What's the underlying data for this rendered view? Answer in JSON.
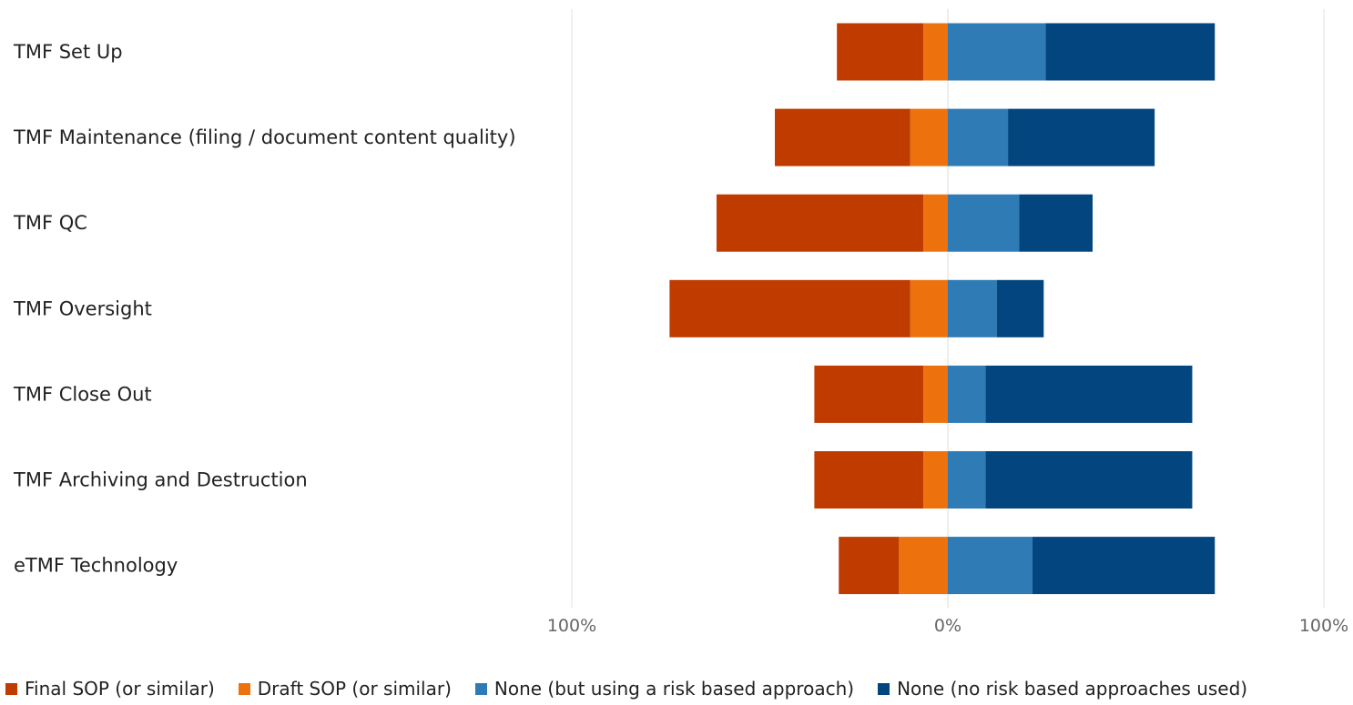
{
  "chart_data": {
    "type": "bar",
    "orientation": "horizontal",
    "stacking": "diverging",
    "categories": [
      "TMF Set Up",
      "TMF Maintenance (filing / document content quality)",
      "TMF QC",
      "TMF Oversight",
      "TMF Close Out",
      "TMF Archiving and Destruction",
      "eTMF Technology"
    ],
    "series": [
      {
        "name": "Final SOP (or similar)",
        "side": "negative",
        "color": "#bf3b00",
        "values": [
          23,
          36,
          55,
          64,
          29,
          29,
          16
        ]
      },
      {
        "name": "Draft SOP (or similar)",
        "side": "negative",
        "color": "#ed720d",
        "values": [
          6.5,
          10,
          6.5,
          10,
          6.5,
          6.5,
          13
        ]
      },
      {
        "name": "None (but using a risk based approach)",
        "side": "positive",
        "color": "#2e7bb5",
        "values": [
          26,
          16,
          19,
          13,
          10,
          10,
          22.5
        ]
      },
      {
        "name": "None (no risk based approaches used)",
        "side": "positive",
        "color": "#03467f",
        "values": [
          45,
          39,
          19.5,
          12.5,
          55,
          55,
          48.5
        ]
      }
    ],
    "xlim": [
      -100,
      100
    ],
    "tick_labels": [
      "100%",
      "0%",
      "100%"
    ],
    "title": "",
    "xlabel": "",
    "ylabel": "",
    "legend_position": "bottom-left"
  }
}
